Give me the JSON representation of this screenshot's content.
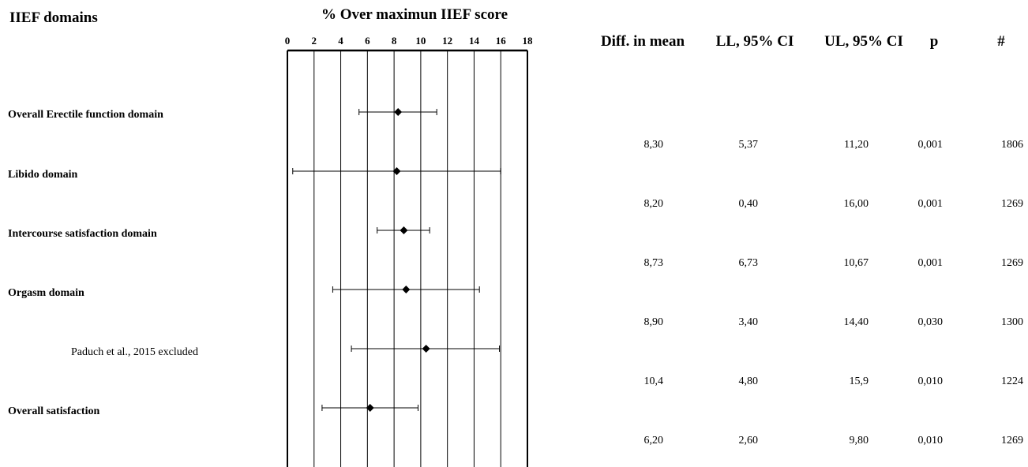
{
  "header": {
    "domains_heading": "IIEF domains",
    "axis_title": "% Over maximun  IIEF score",
    "columns": [
      "Diff. in mean",
      "LL, 95% CI",
      "UL, 95% CI",
      "p",
      "#"
    ]
  },
  "rows": [
    {
      "label": "Overall Erectile function domain",
      "style": "bold",
      "diff": "8,30",
      "ll": "5,37",
      "ul": "11,20",
      "p": "0,001",
      "n": "1806"
    },
    {
      "label": "Libido domain",
      "style": "bold",
      "diff": "8,20",
      "ll": "0,40",
      "ul": "16,00",
      "p": "0,001",
      "n": "1269"
    },
    {
      "label": "Intercourse satisfaction domain",
      "style": "bold",
      "diff": "8,73",
      "ll": "6,73",
      "ul": "10,67",
      "p": "0,001",
      "n": "1269"
    },
    {
      "label": "Orgasm domain",
      "style": "bold",
      "diff": "8,90",
      "ll": "3,40",
      "ul": "14,40",
      "p": "0,030",
      "n": "1300"
    },
    {
      "label": "Paduch et al., 2015 excluded",
      "style": "normal",
      "diff": "10,4",
      "ll": "4,80",
      "ul": "15,9",
      "p": "0,010",
      "n": "1224"
    },
    {
      "label": "Overall satisfaction",
      "style": "bold",
      "diff": "6,20",
      "ll": "2,60",
      "ul": "9,80",
      "p": "0,010",
      "n": "1269"
    }
  ],
  "chart_data": {
    "type": "scatter",
    "subtype": "forest-plot",
    "xlabel": "% Over maximun  IIEF score",
    "xlim": [
      0,
      18
    ],
    "xticks": [
      0,
      2,
      4,
      6,
      8,
      10,
      12,
      14,
      16,
      18
    ],
    "grid": "vertical",
    "categories": [
      "Overall Erectile function domain",
      "Libido domain",
      "Intercourse satisfaction domain",
      "Orgasm domain",
      "Paduch et al., 2015 excluded",
      "Overall satisfaction"
    ],
    "point": [
      8.3,
      8.2,
      8.73,
      8.9,
      10.4,
      6.2
    ],
    "lower": [
      5.37,
      0.4,
      6.73,
      3.4,
      4.8,
      2.6
    ],
    "upper": [
      11.2,
      16.0,
      10.67,
      14.4,
      15.9,
      9.8
    ]
  }
}
